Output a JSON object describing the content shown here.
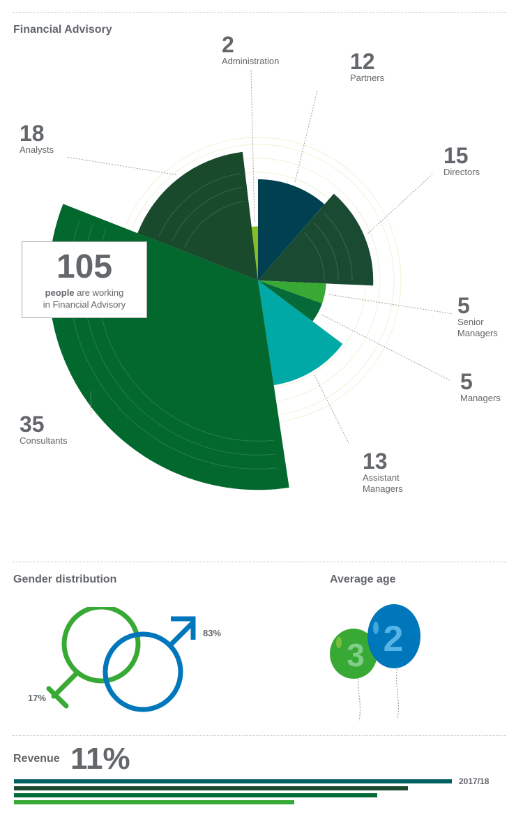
{
  "sections": {
    "advisory_title": "Financial Advisory",
    "gender_title": "Gender distribution",
    "age_title": "Average age",
    "revenue_title": "Revenue"
  },
  "summary": {
    "total": "105",
    "text_bold": "people",
    "text_rest": " are working",
    "text_line2": "in Financial Advisory"
  },
  "chart_data": [
    {
      "type": "pie",
      "title": "Financial Advisory",
      "categories": [
        "Partners",
        "Directors",
        "Senior Managers",
        "Managers",
        "Assistant Managers",
        "Consultants",
        "Analysts",
        "Administration"
      ],
      "values": [
        12,
        15,
        5,
        5,
        13,
        35,
        18,
        2
      ],
      "labels": [
        {
          "value": "12",
          "line1": "Partners",
          "line2": ""
        },
        {
          "value": "15",
          "line1": "Directors",
          "line2": ""
        },
        {
          "value": "5",
          "line1": "Senior",
          "line2": "Managers"
        },
        {
          "value": "5",
          "line1": "Managers",
          "line2": ""
        },
        {
          "value": "13",
          "line1": "Assistant",
          "line2": "Managers"
        },
        {
          "value": "35",
          "line1": "Consultants",
          "line2": ""
        },
        {
          "value": "18",
          "line1": "Analysts",
          "line2": ""
        },
        {
          "value": "2",
          "line1": "Administration",
          "line2": ""
        }
      ],
      "colors": [
        "#004050",
        "#1a4b32",
        "#39a935",
        "#046a38",
        "#00a8a6",
        "#02682e",
        "#184a2b",
        "#86bc25"
      ],
      "total": 105
    },
    {
      "type": "bar",
      "title": "Gender distribution",
      "categories": [
        "female",
        "male"
      ],
      "values": [
        17,
        83
      ],
      "labels": [
        "17%",
        "83%"
      ],
      "colors": [
        "#39a935",
        "#0076bb"
      ]
    },
    {
      "type": "bar",
      "title": "Revenue",
      "headline": "11%",
      "series_label": "2017/18",
      "values": [
        1.0,
        0.9,
        0.83,
        0.64
      ],
      "colors": [
        "#00605f",
        "#1b4a2d",
        "#046a38",
        "#39a935"
      ]
    }
  ],
  "age": {
    "digits": [
      "3",
      "2"
    ],
    "colors": [
      "#39a935",
      "#0076bb"
    ]
  },
  "gender": {
    "female_pct": "17%",
    "male_pct": "83%"
  },
  "revenue": {
    "headline": "11%",
    "year": "2017/18"
  }
}
